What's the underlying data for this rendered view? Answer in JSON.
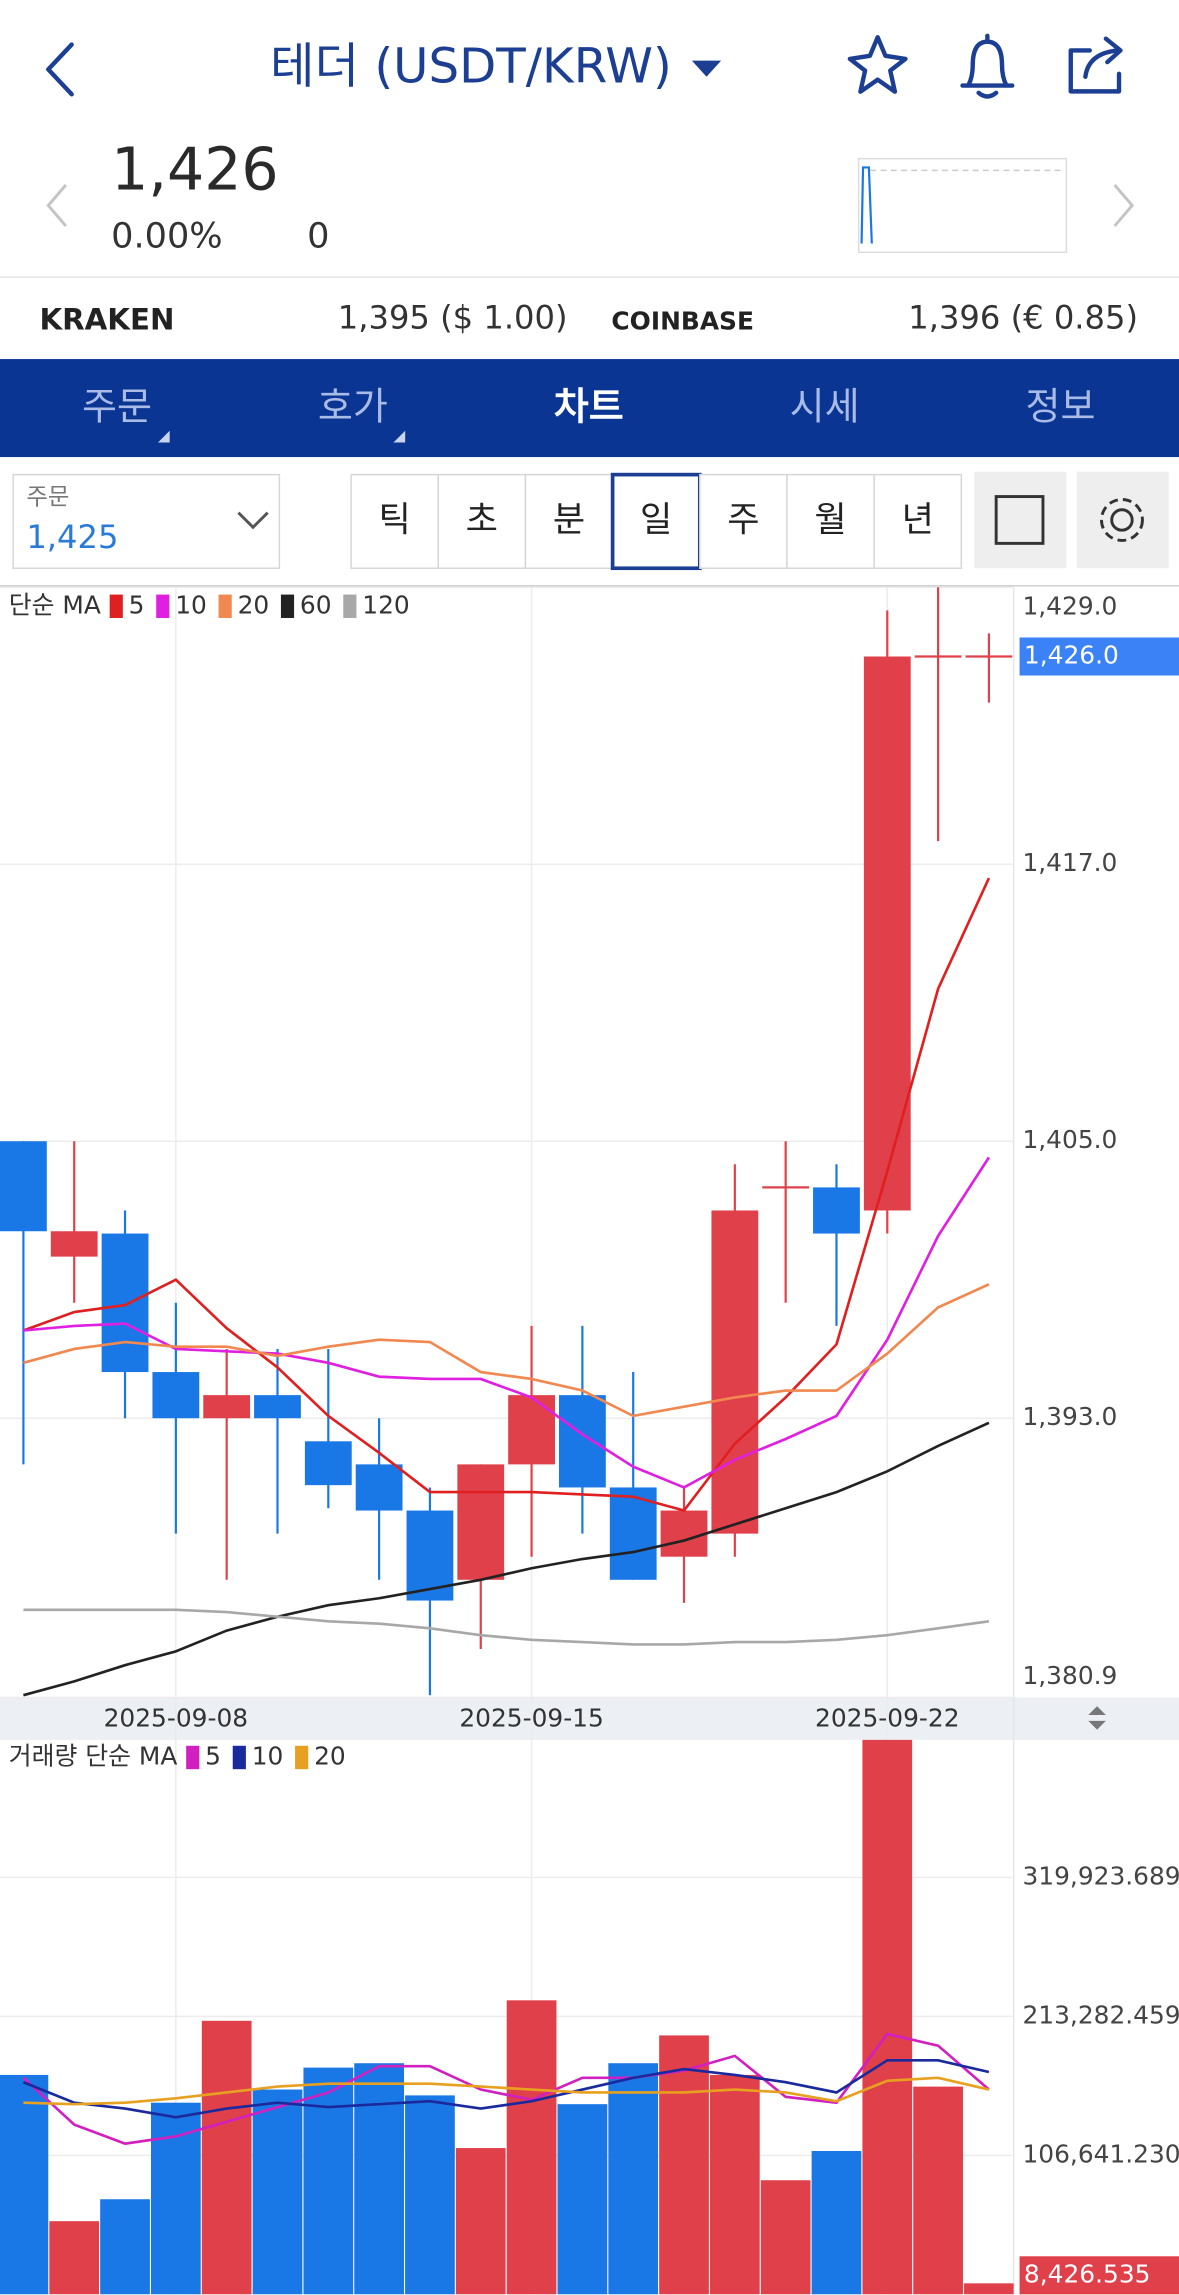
{
  "header": {
    "title": "테더 (USDT/KRW)"
  },
  "quote": {
    "price": "1,426",
    "change_rate": "0.00%",
    "change": "0"
  },
  "exchanges": [
    {
      "name": "KRAKEN",
      "price": "1,395 ($ 1.00)"
    },
    {
      "name": "COINBASE",
      "price": "1,396 (€ 0.85)"
    }
  ],
  "tabs": [
    "주문",
    "호가",
    "차트",
    "시세",
    "정보"
  ],
  "order": {
    "label": "주문",
    "value": "1,425"
  },
  "periods": [
    "틱",
    "초",
    "분",
    "일",
    "주",
    "월",
    "년"
  ],
  "chart_data": [
    {
      "type": "candlestick",
      "legend_title": "단순 MA",
      "categories": [
        null,
        null,
        null,
        "2025-09-08",
        null,
        null,
        null,
        null,
        null,
        null,
        "2025-09-15",
        null,
        null,
        null,
        null,
        null,
        null,
        "2025-09-22",
        null,
        null
      ],
      "open": [
        1405.0,
        1400.0,
        1401.0,
        1395.0,
        1393.0,
        1394.0,
        1392.0,
        1391.0,
        1389.0,
        1386.0,
        1391.0,
        1394.0,
        1390.0,
        1387.0,
        1388.0,
        1403.0,
        1403.0,
        1402.0,
        1426.0,
        1426.0
      ],
      "high": [
        1405.0,
        1405.0,
        1402.0,
        1398.0,
        1396.0,
        1396.0,
        1396.0,
        1393.0,
        1390.0,
        1391.0,
        1397.0,
        1397.0,
        1395.0,
        1390.0,
        1404.0,
        1405.0,
        1404.0,
        1428.0,
        1430.0,
        1427.0
      ],
      "low": [
        1391.0,
        1398.0,
        1393.0,
        1388.0,
        1386.0,
        1388.0,
        1389.1,
        1386.0,
        1381.0,
        1383.0,
        1387.0,
        1388.0,
        1386.0,
        1385.0,
        1387.0,
        1398.0,
        1397.0,
        1401.0,
        1418.0,
        1424.0
      ],
      "close": [
        1401.1,
        1401.1,
        1395.0,
        1393.0,
        1394.0,
        1393.0,
        1390.1,
        1389.0,
        1385.1,
        1391.0,
        1394.0,
        1390.0,
        1386.0,
        1389.0,
        1402.0,
        1403.0,
        1401.0,
        1426.0,
        1426.0,
        1426.0
      ],
      "up_color": "#e0404a",
      "down_color": "#1a78e6",
      "series": [
        {
          "name": "5",
          "color": "#e02020",
          "values": [
            1396.8,
            1397.6,
            1397.9,
            1399.0,
            1396.9,
            1395.2,
            1393.1,
            1391.5,
            1389.8,
            1389.8,
            1389.8,
            1389.7,
            1389.6,
            1389.0,
            1391.9,
            1393.9,
            1396.2,
            1403.7,
            1411.6,
            1416.4
          ]
        },
        {
          "name": "10",
          "color": "#e020e0",
          "values": [
            1396.8,
            1397.0,
            1397.1,
            1396.0,
            1395.9,
            1395.8,
            1395.4,
            1394.8,
            1394.7,
            1394.7,
            1393.9,
            1392.3,
            1390.9,
            1390.0,
            1391.2,
            1392.1,
            1393.1,
            1396.4,
            1400.9,
            1404.3
          ]
        },
        {
          "name": "20",
          "color": "#f08850",
          "values": [
            1395.4,
            1396.0,
            1396.3,
            1396.1,
            1396.1,
            1395.7,
            1396.1,
            1396.4,
            1396.3,
            1395.0,
            1394.7,
            1394.2,
            1393.1,
            1393.5,
            1393.9,
            1394.2,
            1394.2,
            1395.8,
            1397.8,
            1398.8
          ]
        },
        {
          "name": "60",
          "color": "#222222",
          "values": [
            1381.0,
            1381.6,
            1382.3,
            1382.9,
            1383.8,
            1384.4,
            1384.9,
            1385.2,
            1385.6,
            1386.0,
            1386.5,
            1386.9,
            1387.2,
            1387.7,
            1388.4,
            1389.1,
            1389.8,
            1390.7,
            1391.8,
            1392.8
          ]
        },
        {
          "name": "120",
          "color": "#a8a8a8",
          "values": [
            1384.7,
            1384.7,
            1384.7,
            1384.7,
            1384.6,
            1384.4,
            1384.2,
            1384.1,
            1383.9,
            1383.6,
            1383.4,
            1383.3,
            1383.2,
            1383.2,
            1383.3,
            1383.3,
            1383.4,
            1383.6,
            1383.9,
            1384.2
          ]
        }
      ],
      "ylim": [
        1380.9,
        1429.0
      ],
      "yticks": [
        {
          "value": 1380.9,
          "label": "1,380.9"
        },
        {
          "value": 1393.0,
          "label": "1,393.0"
        },
        {
          "value": 1405.0,
          "label": "1,405.0"
        },
        {
          "value": 1417.0,
          "label": "1,417.0"
        },
        {
          "value": 1429.0,
          "label": "1,429.0"
        }
      ],
      "last_value": {
        "value": 1426.0,
        "label": "1,426.0"
      },
      "last_value_color": "#3b82f6",
      "grid": true
    },
    {
      "type": "bar",
      "legend_title": "거래량 단순 MA",
      "values": [
        168375,
        56125,
        72963,
        147048,
        209908,
        157150,
        173988,
        177355,
        152660,
        112250,
        225623,
        145925,
        177355,
        198683,
        168375,
        87555,
        110005,
        470000,
        159395,
        8426.535
      ],
      "series": [
        {
          "name": "5",
          "color": "#d020c0",
          "values": [
            166130,
            130210,
            115618,
            121230,
            132455,
            143680,
            154905,
            175110,
            175110,
            157150,
            149293,
            166130,
            166130,
            171743,
            182968,
            151538,
            147048,
            199805,
            190825,
            157150
          ]
        },
        {
          "name": "10",
          "color": "#1a2a9c",
          "values": [
            162763,
            147048,
            142558,
            135823,
            142558,
            147048,
            143680,
            145925,
            148170,
            142558,
            148170,
            157150,
            166130,
            172865,
            168375,
            162763,
            154905,
            179600,
            179600,
            170620
          ]
        },
        {
          "name": "20",
          "color": "#e8a020",
          "values": [
            147048,
            145925,
            147048,
            150415,
            154905,
            159395,
            161640,
            161640,
            161640,
            159395,
            157150,
            154905,
            154905,
            154905,
            157150,
            154905,
            148170,
            163885,
            166130,
            157150
          ]
        }
      ],
      "ylim": [
        0,
        425450
      ],
      "yticks": [
        {
          "value": 106641.23,
          "label": "106,641.230"
        },
        {
          "value": 213282.459,
          "label": "213,282.459"
        },
        {
          "value": 319923.689,
          "label": "319,923.689"
        }
      ],
      "last_value": {
        "value": 8426.535,
        "label": "8,426.535"
      },
      "last_value_color": "#e0404a",
      "grid": true
    }
  ]
}
